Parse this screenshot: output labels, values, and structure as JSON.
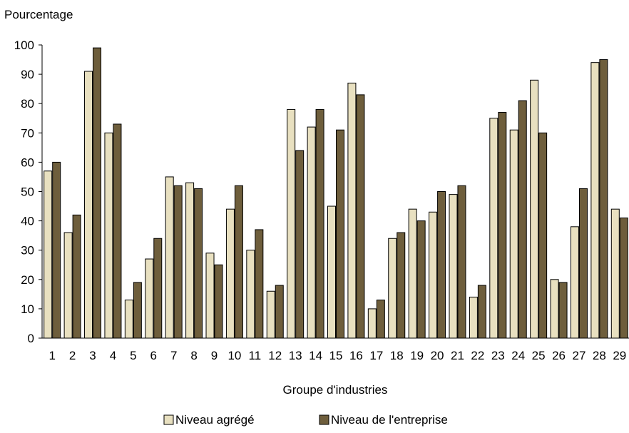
{
  "chart_data": {
    "type": "bar",
    "ylabel": "Pourcentage",
    "xlabel": "Groupe d'industries",
    "ylim": [
      0,
      100
    ],
    "yticks": [
      0,
      10,
      20,
      30,
      40,
      50,
      60,
      70,
      80,
      90,
      100
    ],
    "categories": [
      "1",
      "2",
      "3",
      "4",
      "5",
      "6",
      "7",
      "8",
      "9",
      "10",
      "11",
      "12",
      "13",
      "14",
      "15",
      "16",
      "17",
      "18",
      "19",
      "20",
      "21",
      "22",
      "23",
      "24",
      "25",
      "26",
      "27",
      "28",
      "29"
    ],
    "series": [
      {
        "name": "Niveau agrégé",
        "color": "#e8e0c0",
        "values": [
          57,
          36,
          91,
          70,
          13,
          27,
          55,
          53,
          29,
          44,
          30,
          16,
          78,
          72,
          45,
          87,
          10,
          34,
          44,
          43,
          49,
          14,
          75,
          71,
          88,
          20,
          38,
          94,
          44
        ]
      },
      {
        "name": "Niveau de l'entreprise",
        "color": "#6e5e3c",
        "values": [
          60,
          42,
          99,
          73,
          19,
          34,
          52,
          51,
          25,
          52,
          37,
          18,
          64,
          78,
          71,
          83,
          13,
          36,
          40,
          50,
          52,
          18,
          77,
          81,
          70,
          19,
          51,
          95,
          41
        ]
      }
    ],
    "legend_position": "bottom",
    "grid": false
  }
}
